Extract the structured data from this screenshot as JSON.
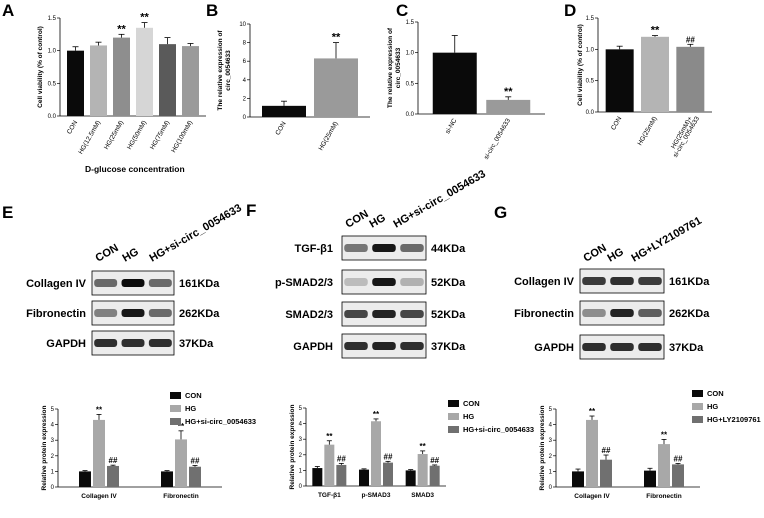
{
  "figure": {
    "panel_labels": [
      "A",
      "B",
      "C",
      "D",
      "E",
      "F",
      "G"
    ]
  },
  "panels": {
    "A": {
      "ylabel": "Cell viability (% of control)",
      "xtitle": "D-glucose concentration",
      "yticks": [
        "0.0",
        "0.5",
        "1.0",
        "1.5"
      ],
      "categories": [
        "CON",
        "HG(12.5mM)",
        "HG(25mM)",
        "HG(50mM)",
        "HG(75mM)",
        "HG(100mM)"
      ],
      "colors": [
        "#0a0a0a",
        "#b4b4b4",
        "#8e8e8e",
        "#d6d6d6",
        "#5a5a5a",
        "#9a9a9a"
      ],
      "sig": [
        "",
        "",
        "**",
        "**",
        "",
        ""
      ]
    },
    "B": {
      "ylabel": "The relative expression of circ_0054633",
      "yticks": [
        "0",
        "2",
        "4",
        "6",
        "8",
        "10"
      ],
      "categories": [
        "CON",
        "HG(25mM)"
      ],
      "colors": [
        "#0a0a0a",
        "#9a9a9a"
      ],
      "sig": [
        "",
        "**"
      ]
    },
    "C": {
      "ylabel": "The relative expression of circ_0054633",
      "yticks": [
        "0.0",
        "0.5",
        "1.0",
        "1.5"
      ],
      "categories": [
        "si-NC",
        "si-circ_0054633"
      ],
      "colors": [
        "#0a0a0a",
        "#9a9a9a"
      ],
      "sig": [
        "",
        "**"
      ]
    },
    "D": {
      "ylabel": "Cell viability (% of control)",
      "yticks": [
        "0.0",
        "0.5",
        "1.0",
        "1.5"
      ],
      "categories": [
        "CON",
        "HG(25mM)",
        "HG(25mM)+ si-circ_0054633"
      ],
      "colors": [
        "#0a0a0a",
        "#b4b4b4",
        "#8a8a8a"
      ],
      "sig": [
        "",
        "**",
        "##"
      ]
    },
    "E": {
      "lanes": [
        "CON",
        "HG",
        "HG+si-circ_0054633"
      ],
      "rows": [
        "Collagen IV",
        "Fibronectin",
        "GAPDH"
      ],
      "kda": [
        "161KDa",
        "262KDa",
        "37KDa"
      ],
      "ylabel": "Relative protein expression",
      "yticks": [
        "0",
        "1",
        "2",
        "3",
        "4",
        "5"
      ],
      "groups": [
        "Collagen IV",
        "Fibronectin"
      ],
      "legend": [
        "CON",
        "HG",
        "HG+si-circ_0054633"
      ],
      "colors": [
        "#0a0a0a",
        "#a8a8a8",
        "#707070"
      ],
      "sig_hg": "**",
      "sig_tx": "##"
    },
    "F": {
      "lanes": [
        "CON",
        "HG",
        "HG+si-circ_0054633"
      ],
      "rows": [
        "TGF-β1",
        "p-SMAD2/3",
        "SMAD2/3",
        "GAPDH"
      ],
      "kda": [
        "44KDa",
        "52KDa",
        "52KDa",
        "37KDa"
      ],
      "ylabel": "Relative protein expression",
      "yticks": [
        "0",
        "1",
        "2",
        "3",
        "4",
        "5"
      ],
      "groups": [
        "TGF-β1",
        "p-SMAD3",
        "SMAD3"
      ],
      "legend": [
        "CON",
        "HG",
        "HG+si-circ_0054633"
      ],
      "colors": [
        "#0a0a0a",
        "#a8a8a8",
        "#707070"
      ],
      "sig_hg": "**",
      "sig_tx": "##"
    },
    "G": {
      "lanes": [
        "CON",
        "HG",
        "HG+LY2109761"
      ],
      "rows": [
        "Collagen IV",
        "Fibronectin",
        "GAPDH"
      ],
      "kda": [
        "161KDa",
        "262KDa",
        "37KDa"
      ],
      "ylabel": "Relative protein expression",
      "yticks": [
        "0",
        "1",
        "2",
        "3",
        "4",
        "5"
      ],
      "groups": [
        "Collagen IV",
        "Fibronectin"
      ],
      "legend": [
        "CON",
        "HG",
        "HG+LY2109761"
      ],
      "colors": [
        "#0a0a0a",
        "#a8a8a8",
        "#707070"
      ],
      "sig_hg": "**",
      "sig_tx": "##"
    }
  },
  "chart_data": [
    {
      "panel": "A",
      "type": "bar",
      "categories": [
        "CON",
        "HG(12.5mM)",
        "HG(25mM)",
        "HG(50mM)",
        "HG(75mM)",
        "HG(100mM)"
      ],
      "values": [
        1.0,
        1.08,
        1.2,
        1.35,
        1.1,
        1.07
      ],
      "errors": [
        0.06,
        0.05,
        0.05,
        0.08,
        0.1,
        0.04
      ],
      "ylabel": "Cell viability (% of control)",
      "xlabel": "D-glucose concentration",
      "ylim": [
        0,
        1.5
      ]
    },
    {
      "panel": "B",
      "type": "bar",
      "categories": [
        "CON",
        "HG(25mM)"
      ],
      "values": [
        1.2,
        6.3
      ],
      "errors": [
        0.5,
        1.7
      ],
      "ylabel": "The relative expression of circ_0054633",
      "ylim": [
        0,
        10
      ]
    },
    {
      "panel": "C",
      "type": "bar",
      "categories": [
        "si-NC",
        "si-circ_0054633"
      ],
      "values": [
        1.0,
        0.23
      ],
      "errors": [
        0.28,
        0.05
      ],
      "ylabel": "The relative expression of circ_0054633",
      "ylim": [
        0,
        1.5
      ]
    },
    {
      "panel": "D",
      "type": "bar",
      "categories": [
        "CON",
        "HG(25mM)",
        "HG(25mM)+ si-circ_0054633"
      ],
      "values": [
        1.0,
        1.2,
        1.04
      ],
      "errors": [
        0.05,
        0.02,
        0.04
      ],
      "ylabel": "Cell viability (% of control)",
      "ylim": [
        0,
        1.5
      ]
    },
    {
      "panel": "E",
      "type": "bar",
      "categories": [
        "Collagen IV",
        "Fibronectin"
      ],
      "series": [
        {
          "name": "CON",
          "values": [
            1.0,
            1.0
          ]
        },
        {
          "name": "HG",
          "values": [
            4.3,
            3.05
          ]
        },
        {
          "name": "HG+si-circ_0054633",
          "values": [
            1.35,
            1.3
          ]
        }
      ],
      "errors": [
        [
          0.05,
          0.35,
          0.05
        ],
        [
          0.05,
          0.55,
          0.08
        ]
      ],
      "ylabel": "Relative protein expression",
      "ylim": [
        0,
        5
      ]
    },
    {
      "panel": "F",
      "type": "bar",
      "categories": [
        "TGF-β1",
        "p-SMAD3",
        "SMAD3"
      ],
      "series": [
        {
          "name": "CON",
          "values": [
            1.15,
            1.05,
            1.0
          ]
        },
        {
          "name": "HG",
          "values": [
            2.65,
            4.15,
            2.05
          ]
        },
        {
          "name": "HG+si-circ_0054633",
          "values": [
            1.35,
            1.5,
            1.3
          ]
        }
      ],
      "errors": [
        [
          0.1,
          0.25,
          0.1
        ],
        [
          0.05,
          0.15,
          0.08
        ],
        [
          0.05,
          0.2,
          0.05
        ]
      ],
      "ylabel": "Relative protein expression",
      "ylim": [
        0,
        5
      ]
    },
    {
      "panel": "G",
      "type": "bar",
      "categories": [
        "Collagen IV",
        "Fibronectin"
      ],
      "series": [
        {
          "name": "CON",
          "values": [
            1.0,
            1.05
          ]
        },
        {
          "name": "HG",
          "values": [
            4.3,
            2.75
          ]
        },
        {
          "name": "HG+LY2109761",
          "values": [
            1.75,
            1.45
          ]
        }
      ],
      "errors": [
        [
          0.15,
          0.25,
          0.3
        ],
        [
          0.15,
          0.3,
          0.06
        ]
      ],
      "ylabel": "Relative protein expression",
      "ylim": [
        0,
        5
      ]
    }
  ]
}
